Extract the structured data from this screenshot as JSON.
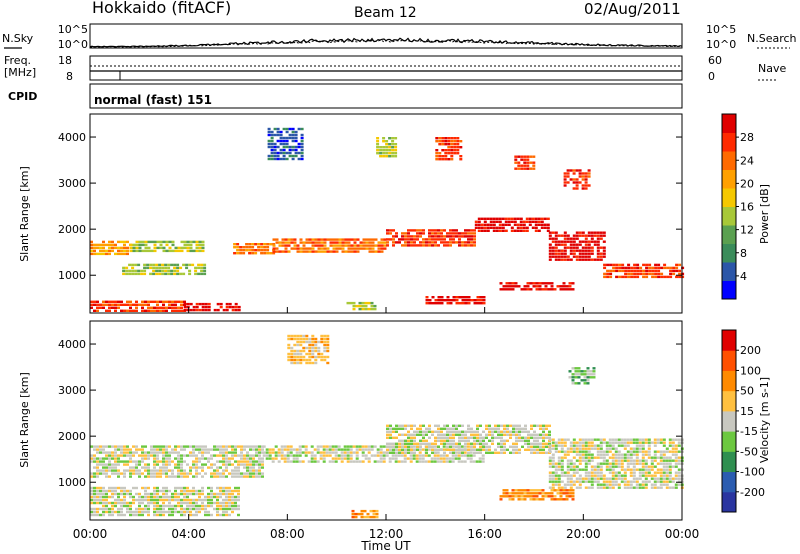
{
  "header": {
    "station": "Hokkaido (fitACF)",
    "beam": "Beam 12",
    "date": "02/Aug/2011"
  },
  "noise_panel": {
    "left_label": "N.Sky",
    "right_label": "N.Search",
    "tick_top": "10^5",
    "tick_bottom": "10^0"
  },
  "freq_panel": {
    "left_label_line1": "Freq.",
    "left_label_line2": "[MHz]",
    "tick_top": "18",
    "tick_bottom": "8",
    "right_label": "Nave",
    "right_tick_top": "60",
    "right_tick_bottom": "0"
  },
  "cpid_panel": {
    "label": "CPID",
    "program": "normal (fast) 151"
  },
  "power_panel": {
    "ylabel": "Slant Range [km]",
    "yticks": [
      "4000",
      "3000",
      "2000",
      "1000"
    ],
    "colorbar_label": "Power [dB]",
    "colorbar_ticks": [
      "28",
      "24",
      "20",
      "16",
      "12",
      "8",
      "4"
    ],
    "colors": [
      "#0000ff",
      "#2b56a8",
      "#3a8c5a",
      "#5aa050",
      "#a8c838",
      "#f5c800",
      "#ffa000",
      "#ff6a00",
      "#ff2a00",
      "#e00000"
    ]
  },
  "velocity_panel": {
    "ylabel": "Slant Range [km]",
    "yticks": [
      "4000",
      "3000",
      "2000",
      "1000"
    ],
    "colorbar_label": "Velocity [m s-1]",
    "colorbar_ticks": [
      "200",
      "100",
      "50",
      "15",
      "-15",
      "-50",
      "-100",
      "-200"
    ],
    "colors": [
      "#2a35a0",
      "#2b5cb0",
      "#2f8f50",
      "#6cc840",
      "#c8c8c0",
      "#ffc040",
      "#ff8a00",
      "#ff5000",
      "#e00000"
    ]
  },
  "xaxis": {
    "label": "Time UT",
    "ticks": [
      "00:00",
      "04:00",
      "08:00",
      "12:00",
      "16:00",
      "20:00",
      "00:00"
    ]
  },
  "chart_data": {
    "type": "heatmap",
    "title": "Hokkaido (fitACF) Beam 12 02/Aug/2011",
    "xlabel": "Time UT",
    "ylabel": "Slant Range [km]",
    "xlim_hours": [
      0,
      24
    ],
    "ylim_km": [
      180,
      4500
    ],
    "power_colorbar_db": [
      4,
      8,
      12,
      16,
      20,
      24,
      28
    ],
    "velocity_colorbar_ms": [
      200,
      100,
      50,
      15,
      -15,
      -50,
      -100,
      -200
    ],
    "power_regions": [
      {
        "t0": 0.0,
        "t1": 1.6,
        "r0": 1450,
        "r1": 1750,
        "level": 6
      },
      {
        "t0": 1.6,
        "t1": 4.6,
        "r0": 1500,
        "r1": 1750,
        "level": 4
      },
      {
        "t0": 1.3,
        "t1": 4.6,
        "r0": 1000,
        "r1": 1250,
        "level": 4
      },
      {
        "t0": 0.0,
        "t1": 3.8,
        "r0": 250,
        "r1": 450,
        "level": 8
      },
      {
        "t0": 3.8,
        "t1": 6.0,
        "r0": 250,
        "r1": 400,
        "level": 9
      },
      {
        "t0": 5.8,
        "t1": 7.4,
        "r0": 1450,
        "r1": 1700,
        "level": 7
      },
      {
        "t0": 7.4,
        "t1": 12.0,
        "r0": 1500,
        "r1": 1800,
        "level": 7
      },
      {
        "t0": 12.0,
        "t1": 15.6,
        "r0": 1650,
        "r1": 2000,
        "level": 8
      },
      {
        "t0": 15.6,
        "t1": 18.6,
        "r0": 1950,
        "r1": 2250,
        "level": 9
      },
      {
        "t0": 18.6,
        "t1": 20.8,
        "r0": 1300,
        "r1": 1950,
        "level": 9
      },
      {
        "t0": 20.8,
        "t1": 24.0,
        "r0": 950,
        "r1": 1250,
        "level": 8
      },
      {
        "t0": 16.6,
        "t1": 19.6,
        "r0": 700,
        "r1": 850,
        "level": 9
      },
      {
        "t0": 13.6,
        "t1": 16.0,
        "r0": 400,
        "r1": 550,
        "level": 9
      },
      {
        "t0": 10.4,
        "t1": 11.6,
        "r0": 250,
        "r1": 420,
        "level": 4
      },
      {
        "t0": 14.0,
        "t1": 15.0,
        "r0": 3500,
        "r1": 4000,
        "level": 8
      },
      {
        "t0": 17.2,
        "t1": 18.0,
        "r0": 3300,
        "r1": 3600,
        "level": 8
      },
      {
        "t0": 19.2,
        "t1": 20.2,
        "r0": 2900,
        "r1": 3300,
        "level": 8
      },
      {
        "t0": 7.2,
        "t1": 8.6,
        "r0": 3500,
        "r1": 4200,
        "level": 1
      },
      {
        "t0": 11.6,
        "t1": 12.4,
        "r0": 3600,
        "r1": 4000,
        "level": 4
      }
    ],
    "velocity_regions": [
      {
        "t0": 0.0,
        "t1": 7.0,
        "r0": 1100,
        "r1": 1800,
        "level": 4
      },
      {
        "t0": 7.0,
        "t1": 16.0,
        "r0": 1450,
        "r1": 1800,
        "level": 4
      },
      {
        "t0": 12.0,
        "t1": 18.6,
        "r0": 1650,
        "r1": 2250,
        "level": 4
      },
      {
        "t0": 18.6,
        "t1": 24.0,
        "r0": 900,
        "r1": 1950,
        "level": 4
      },
      {
        "t0": 0.0,
        "t1": 6.0,
        "r0": 250,
        "r1": 900,
        "level": 4
      },
      {
        "t0": 16.6,
        "t1": 19.6,
        "r0": 600,
        "r1": 850,
        "level": 6
      },
      {
        "t0": 10.6,
        "t1": 11.6,
        "r0": 250,
        "r1": 400,
        "level": 6
      },
      {
        "t0": 19.4,
        "t1": 20.4,
        "r0": 3150,
        "r1": 3500,
        "level": 3
      },
      {
        "t0": 8.0,
        "t1": 9.6,
        "r0": 3600,
        "r1": 4200,
        "level": 5
      }
    ],
    "noise": {
      "sky_level_log10": [
        0.3,
        0.3,
        0.4,
        0.6,
        0.9,
        1.2,
        1.5,
        1.6,
        1.7,
        1.6,
        1.5,
        1.3,
        1.1,
        0.8,
        0.6,
        0.5,
        0.4
      ],
      "search_level_log10": [
        0.25,
        0.25,
        0.3,
        0.5,
        0.8,
        1.0,
        1.3,
        1.4,
        1.4,
        1.4,
        1.3,
        1.1,
        0.9,
        0.7,
        0.5,
        0.4,
        0.35
      ]
    },
    "frequency_mhz": 9.5,
    "nave": 30
  }
}
